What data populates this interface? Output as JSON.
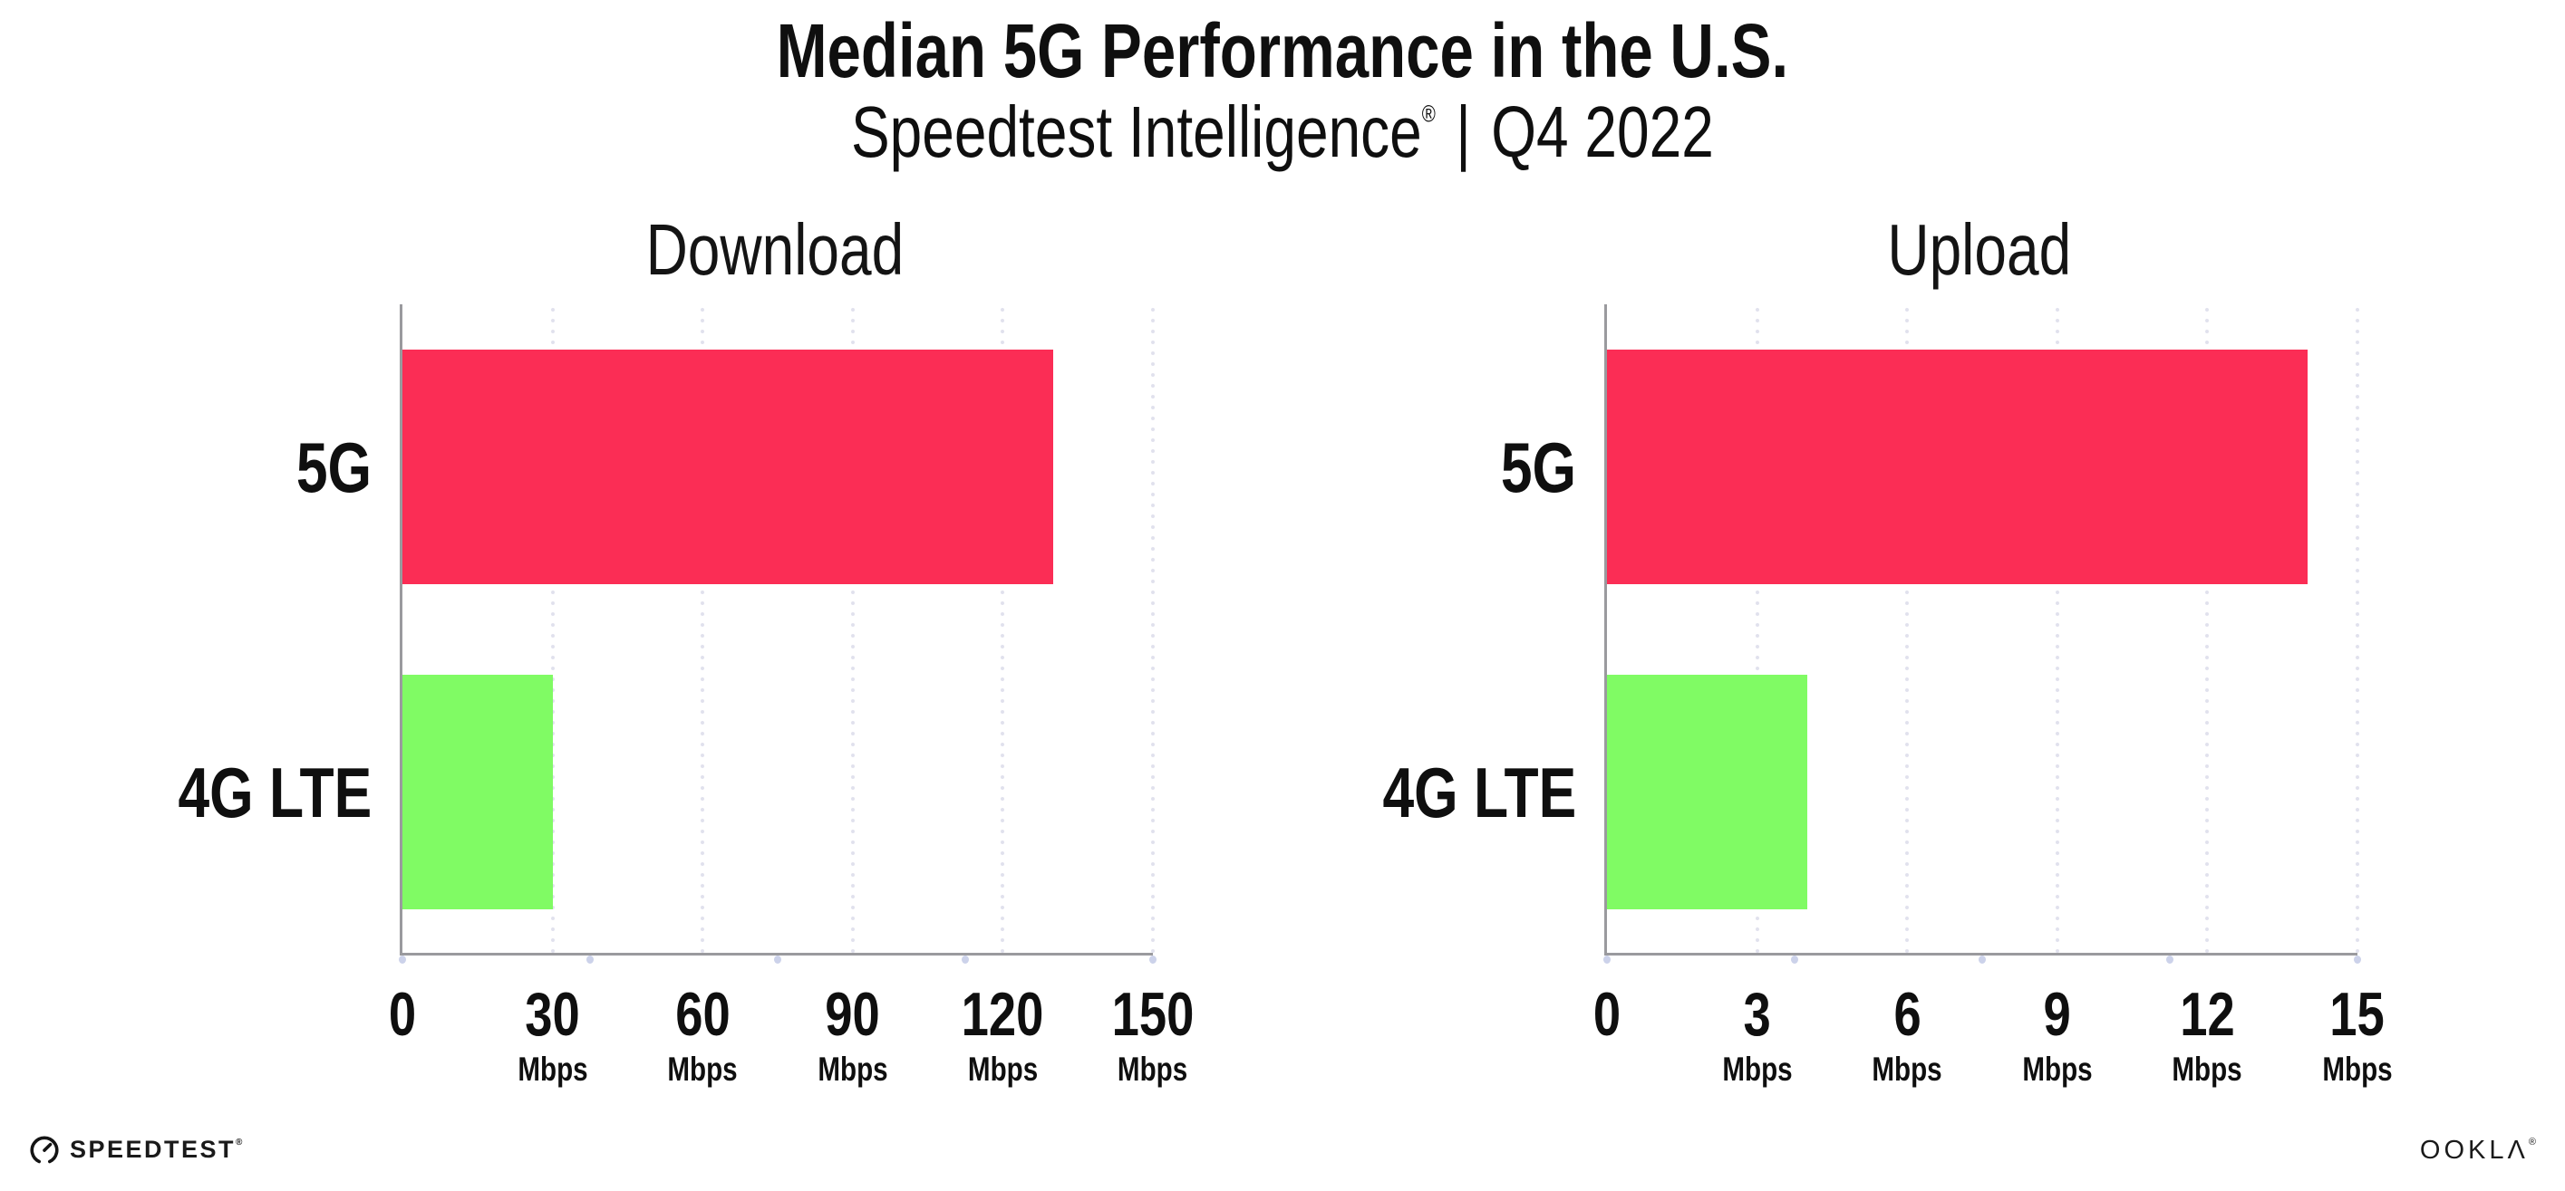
{
  "header": {
    "title": "Median 5G Performance in the U.S.",
    "subtitle": {
      "brand": "Speedtest Intelligence",
      "registered_mark": "®",
      "separator": "|",
      "period": "Q4 2022"
    }
  },
  "chart_data": [
    {
      "type": "bar",
      "orientation": "horizontal",
      "title": "Download",
      "categories": [
        "5G",
        "4G LTE"
      ],
      "values": [
        130,
        30
      ],
      "unit": "Mbps",
      "xlabel": "",
      "ylabel": "",
      "xlim": [
        0,
        150
      ],
      "xticks": [
        0,
        30,
        60,
        90,
        120,
        150
      ],
      "bar_colors": [
        "#fb2d55",
        "#80fb64"
      ],
      "grid": "dotted vertical gridlines at each labeled tick",
      "legend": "none"
    },
    {
      "type": "bar",
      "orientation": "horizontal",
      "title": "Upload",
      "categories": [
        "5G",
        "4G LTE"
      ],
      "values": [
        14,
        4
      ],
      "unit": "Mbps",
      "xlabel": "",
      "ylabel": "",
      "xlim": [
        0,
        15
      ],
      "xticks": [
        0,
        3,
        6,
        9,
        12,
        15
      ],
      "bar_colors": [
        "#fb2d55",
        "#80fb64"
      ],
      "grid": "dotted vertical gridlines at each labeled tick",
      "legend": "none"
    }
  ],
  "footer": {
    "speedtest_wordmark": "SPEEDTEST",
    "speedtest_registered_mark": "®",
    "ookla_wordmark": "OOKLA",
    "ookla_registered_mark": "®"
  },
  "style_colors": {
    "bar_5g": "#fb2d55",
    "bar_4g_lte": "#80fb64",
    "axis_line": "#9a9a9e",
    "gridline_dots": "#e0e1ed",
    "axis_tick_dots": "#ccd2ea",
    "text": "#0f0f0f",
    "background": "#ffffff"
  }
}
